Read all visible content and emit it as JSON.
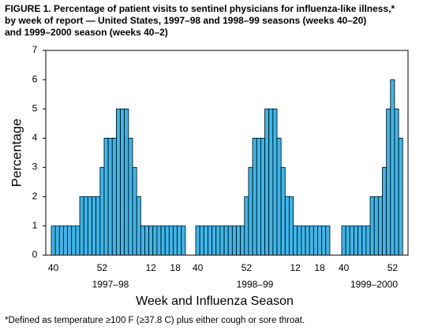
{
  "chart_data": {
    "type": "bar",
    "title": [
      "FIGURE 1. Percentage of patient visits to sentinel physicians for influenza-like illness,*",
      "by week of report — United States, 1997–98 and 1998–99 seasons (weeks 40–20)",
      "and 1999–2000 season (weeks 40–2)"
    ],
    "xlabel": "Week and Influenza Season",
    "ylabel": "Percentage",
    "footnote": "*Defined as temperature ≥100 F (≥37.8 C) plus either cough or sore throat.",
    "ylim": [
      0,
      7
    ],
    "yticks": [
      0,
      1,
      2,
      3,
      4,
      5,
      6,
      7
    ],
    "color": "#3db6ea",
    "groups": [
      {
        "name": "1997–98",
        "categories": [
          "40",
          null,
          null,
          null,
          null,
          null,
          null,
          null,
          null,
          null,
          null,
          null,
          "52",
          null,
          null,
          null,
          null,
          null,
          null,
          null,
          null,
          null,
          null,
          null,
          "12",
          null,
          null,
          null,
          null,
          null,
          "18",
          null,
          null
        ],
        "values": [
          1,
          1,
          1,
          1,
          1,
          1,
          1,
          2,
          2,
          2,
          2,
          2,
          3,
          4,
          4,
          4,
          5,
          5,
          5,
          4,
          3,
          2,
          1,
          1,
          1,
          1,
          1,
          1,
          1,
          1,
          1,
          1,
          1
        ]
      },
      {
        "name": "1998–99",
        "categories": [
          "40",
          null,
          null,
          null,
          null,
          null,
          null,
          null,
          null,
          null,
          null,
          null,
          "52",
          null,
          null,
          null,
          null,
          null,
          null,
          null,
          null,
          null,
          null,
          null,
          "12",
          null,
          null,
          null,
          null,
          null,
          "18",
          null,
          null
        ],
        "values": [
          1,
          1,
          1,
          1,
          1,
          1,
          1,
          1,
          1,
          1,
          1,
          1,
          2,
          3,
          4,
          4,
          4,
          5,
          5,
          5,
          4,
          3,
          2,
          2,
          1,
          1,
          1,
          1,
          1,
          1,
          1,
          1,
          1
        ]
      },
      {
        "name": "1999–2000",
        "categories": [
          "40",
          null,
          null,
          null,
          null,
          null,
          null,
          null,
          null,
          null,
          null,
          null,
          "52",
          null,
          null
        ],
        "values": [
          1,
          1,
          1,
          1,
          1,
          1,
          1,
          2,
          2,
          2,
          3,
          5,
          6,
          5,
          4
        ]
      }
    ]
  }
}
